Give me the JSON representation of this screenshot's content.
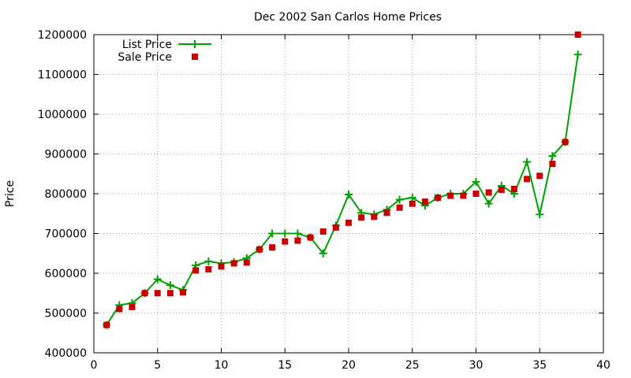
{
  "chart_data": {
    "type": "line",
    "title": "Dec 2002 San Carlos Home Prices",
    "xlabel": "",
    "ylabel": "Price",
    "xlim": [
      0,
      40
    ],
    "ylim": [
      400000,
      1200000
    ],
    "x_ticks": [
      0,
      5,
      10,
      15,
      20,
      25,
      30,
      35,
      40
    ],
    "y_ticks": [
      400000,
      500000,
      600000,
      700000,
      800000,
      900000,
      1000000,
      1100000,
      1200000
    ],
    "grid": true,
    "legend_position": "top-left",
    "series": [
      {
        "name": "List Price",
        "style": "line-with-plus-markers",
        "color": "#00a000",
        "x": [
          1,
          2,
          3,
          4,
          5,
          6,
          7,
          8,
          9,
          10,
          11,
          12,
          13,
          14,
          15,
          16,
          17,
          18,
          19,
          20,
          21,
          22,
          23,
          24,
          25,
          26,
          27,
          28,
          29,
          30,
          31,
          32,
          33,
          34,
          35,
          36,
          37,
          38
        ],
        "values": [
          470000,
          520000,
          525000,
          550000,
          585000,
          570000,
          558000,
          620000,
          630000,
          625000,
          628000,
          638000,
          660000,
          700000,
          700000,
          700000,
          690000,
          650000,
          720000,
          798000,
          752000,
          748000,
          760000,
          785000,
          790000,
          770000,
          790000,
          800000,
          800000,
          830000,
          775000,
          820000,
          800000,
          880000,
          748000,
          895000,
          930000,
          1150000
        ]
      },
      {
        "name": "Sale Price",
        "style": "square-markers",
        "color": "#c80000",
        "x": [
          1,
          2,
          3,
          4,
          5,
          6,
          7,
          8,
          9,
          10,
          11,
          12,
          13,
          14,
          15,
          16,
          17,
          18,
          19,
          20,
          21,
          22,
          23,
          24,
          25,
          26,
          27,
          28,
          29,
          30,
          31,
          32,
          33,
          34,
          35,
          36,
          37,
          38
        ],
        "values": [
          470000,
          510000,
          515000,
          550000,
          550000,
          550000,
          552000,
          607000,
          610000,
          617000,
          625000,
          627000,
          660000,
          665000,
          680000,
          682000,
          690000,
          705000,
          715000,
          727000,
          740000,
          742000,
          752000,
          765000,
          775000,
          780000,
          790000,
          795000,
          795000,
          800000,
          803000,
          810000,
          812000,
          837000,
          845000,
          875000,
          930000,
          1200000
        ]
      }
    ]
  }
}
